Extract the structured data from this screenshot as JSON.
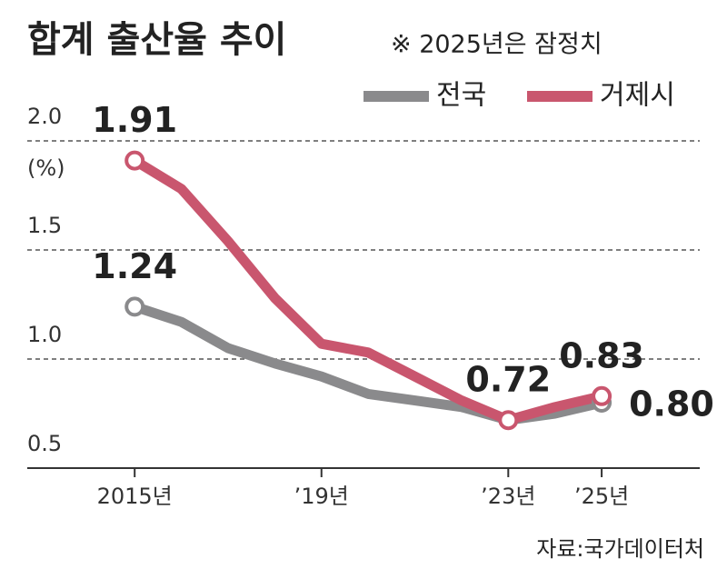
{
  "chart_data": {
    "type": "line",
    "title": "합계 출산율 추이",
    "subtitle": "※ 2025년은 잠정치",
    "y_unit": "(%)",
    "source": "자료:국가데이터처",
    "x": [
      2015,
      2016,
      2017,
      2018,
      2019,
      2020,
      2021,
      2022,
      2023,
      2024,
      2025
    ],
    "xlim": [
      2012.7,
      2027.1
    ],
    "xticks": [
      {
        "value": 2015,
        "label": "2015년"
      },
      {
        "value": 2019,
        "label": "’19년"
      },
      {
        "value": 2023,
        "label": "’23년"
      },
      {
        "value": 2025,
        "label": "’25년"
      }
    ],
    "ylim": [
      0.5,
      2.0
    ],
    "yticks": [
      {
        "value": 2.0,
        "label": "2.0"
      },
      1.5,
      {
        "value": 1.0,
        "label": "1.0"
      },
      0.5
    ],
    "grid": true,
    "legend": "top-right",
    "series": [
      {
        "name": "전국",
        "color": "#8a8a8c",
        "values": [
          1.24,
          1.17,
          1.05,
          0.98,
          0.92,
          0.84,
          0.81,
          0.78,
          0.72,
          0.75,
          0.8
        ],
        "value_labels": [
          "1.24",
          null,
          null,
          null,
          null,
          null,
          null,
          null,
          null,
          null,
          "0.80"
        ]
      },
      {
        "name": "거제시",
        "color": "#c9566e",
        "values": [
          1.91,
          1.78,
          1.54,
          1.28,
          1.07,
          1.03,
          0.92,
          0.81,
          0.72,
          0.78,
          0.83
        ],
        "value_labels": [
          "1.91",
          null,
          null,
          null,
          null,
          null,
          null,
          null,
          "0.72",
          null,
          "0.83"
        ]
      }
    ]
  }
}
